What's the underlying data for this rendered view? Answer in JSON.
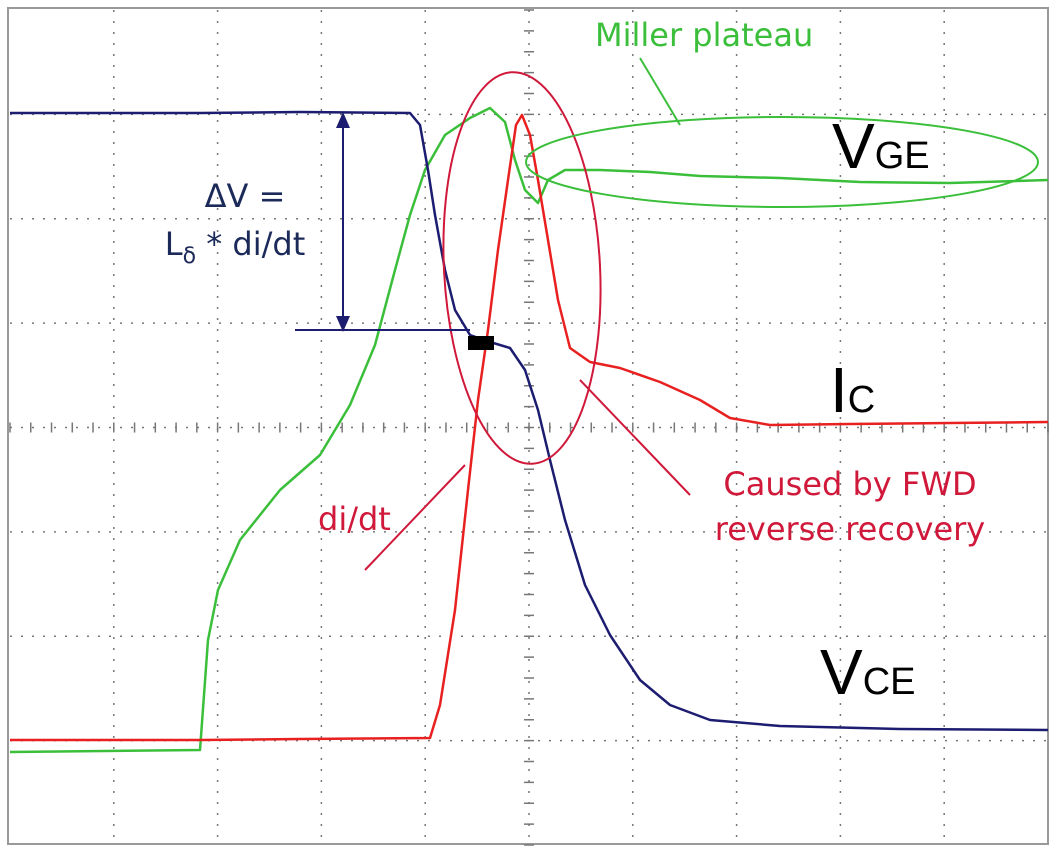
{
  "annotations": {
    "miller": "Miller plateau",
    "delta_v_line1": "ΔV =",
    "delta_v_line2": {
      "main": "L",
      "sub": "δ",
      "rest": " * di/dt"
    },
    "di_dt": "di/dt",
    "fwd_line1": "Caused by FWD",
    "fwd_line2": "reverse recovery"
  },
  "labels": {
    "vge": {
      "main": "V",
      "sub": "GE"
    },
    "ic": {
      "main": "I",
      "sub": "C"
    },
    "vce": {
      "main": "V",
      "sub": "CE"
    }
  }
}
